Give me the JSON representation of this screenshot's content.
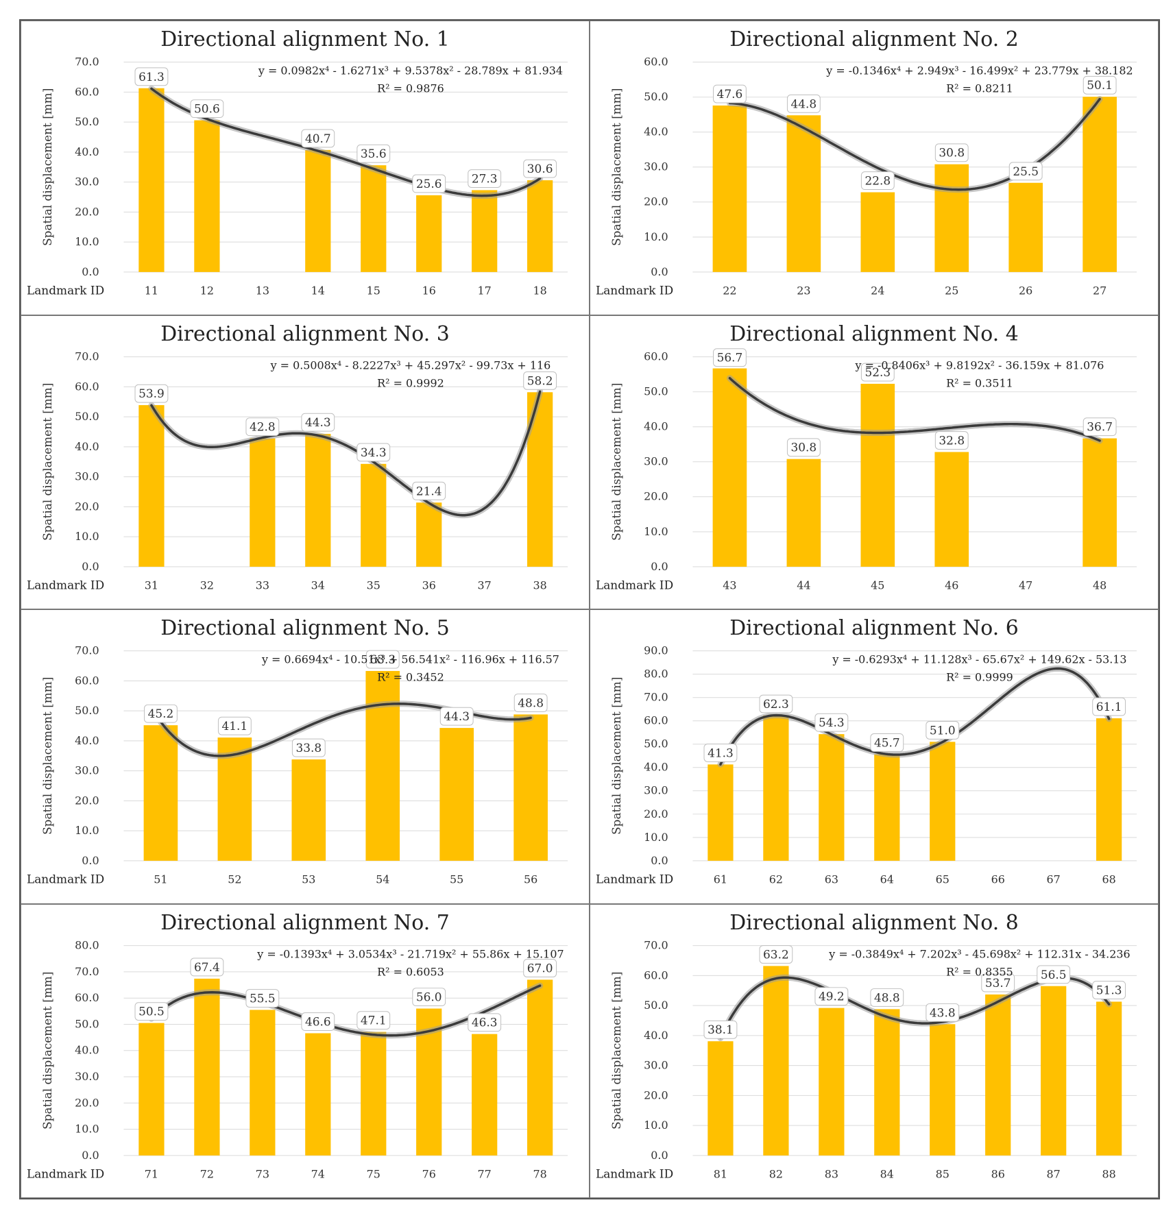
{
  "chart_data": [
    {
      "type": "bar",
      "title": "Directional alignment No. 1",
      "ylabel": "Spatial displacement [mm]",
      "xlabel": "Landmark ID",
      "ylim": [
        0,
        70
      ],
      "yticks": [
        "0.0",
        "10.0",
        "20.0",
        "30.0",
        "40.0",
        "50.0",
        "60.0",
        "70.0"
      ],
      "categories": [
        "11",
        "12",
        "13",
        "14",
        "15",
        "16",
        "17",
        "18"
      ],
      "values": [
        61.3,
        50.6,
        null,
        40.7,
        35.6,
        25.6,
        27.3,
        30.6
      ],
      "labels": [
        "61.3",
        "50.6",
        "",
        "40.7",
        "35.6",
        "25.6",
        "27.3",
        "30.6"
      ],
      "trendline": {
        "type": "polynomial",
        "coefficients": [
          0.0982,
          -1.6271,
          9.5378,
          -28.789,
          81.934
        ]
      },
      "equation": "y = 0.0982x⁴ - 1.6271x³ + 9.5378x² - 28.789x + 81.934",
      "r2": "R² = 0.9876"
    },
    {
      "type": "bar",
      "title": "Directional alignment No. 2",
      "ylabel": "Spatial displacement [mm]",
      "xlabel": "Landmark ID",
      "ylim": [
        0,
        60
      ],
      "yticks": [
        "0.0",
        "10.0",
        "20.0",
        "30.0",
        "40.0",
        "50.0",
        "60.0"
      ],
      "categories": [
        "22",
        "23",
        "24",
        "25",
        "26",
        "27"
      ],
      "values": [
        47.6,
        44.8,
        22.8,
        30.8,
        25.5,
        50.1
      ],
      "labels": [
        "47.6",
        "44.8",
        "22.8",
        "30.8",
        "25.5",
        "50.1"
      ],
      "trendline": {
        "type": "polynomial",
        "coefficients": [
          -0.1346,
          2.949,
          -16.499,
          23.779,
          38.182
        ]
      },
      "equation": "y = -0.1346x⁴ + 2.949x³ - 16.499x² + 23.779x + 38.182",
      "r2": "R² = 0.8211"
    },
    {
      "type": "bar",
      "title": "Directional alignment No. 3",
      "ylabel": "Spatial displacement [mm]",
      "xlabel": "Landmark ID",
      "ylim": [
        0,
        70
      ],
      "yticks": [
        "0.0",
        "10.0",
        "20.0",
        "30.0",
        "40.0",
        "50.0",
        "60.0",
        "70.0"
      ],
      "categories": [
        "31",
        "32",
        "33",
        "34",
        "35",
        "36",
        "37",
        "38"
      ],
      "values": [
        53.9,
        null,
        42.8,
        44.3,
        34.3,
        21.4,
        null,
        58.2
      ],
      "labels": [
        "53.9",
        "",
        "42.8",
        "44.3",
        "34.3",
        "21.4",
        "",
        "58.2"
      ],
      "trendline": {
        "type": "polynomial",
        "coefficients": [
          0.5008,
          -8.2227,
          45.297,
          -99.73,
          116
        ]
      },
      "equation": "y = 0.5008x⁴ - 8.2227x³ + 45.297x² - 99.73x + 116",
      "r2": "R² = 0.9992"
    },
    {
      "type": "bar",
      "title": "Directional alignment No. 4",
      "ylabel": "Spatial displacement [mm]",
      "xlabel": "Landmark ID",
      "ylim": [
        0,
        60
      ],
      "yticks": [
        "0.0",
        "10.0",
        "20.0",
        "30.0",
        "40.0",
        "50.0",
        "60.0"
      ],
      "categories": [
        "43",
        "44",
        "45",
        "46",
        "47",
        "48"
      ],
      "values": [
        56.7,
        30.8,
        52.3,
        32.8,
        null,
        36.7
      ],
      "labels": [
        "56.7",
        "30.8",
        "52.3",
        "32.8",
        "",
        "36.7"
      ],
      "trendline": {
        "type": "polynomial",
        "coefficients": [
          -0.8406,
          9.8192,
          -36.159,
          81.076
        ]
      },
      "equation": "y = -0.8406x³ + 9.8192x² - 36.159x + 81.076",
      "r2": "R² = 0.3511"
    },
    {
      "type": "bar",
      "title": "Directional alignment No. 5",
      "ylabel": "Spatial displacement [mm]",
      "xlabel": "Landmark ID",
      "ylim": [
        0,
        70
      ],
      "yticks": [
        "0.0",
        "10.0",
        "20.0",
        "30.0",
        "40.0",
        "50.0",
        "60.0",
        "70.0"
      ],
      "categories": [
        "51",
        "52",
        "53",
        "54",
        "55",
        "56"
      ],
      "values": [
        45.2,
        41.1,
        33.8,
        63.3,
        44.3,
        48.8
      ],
      "labels": [
        "45.2",
        "41.1",
        "33.8",
        "63.3",
        "44.3",
        "48.8"
      ],
      "trendline": {
        "type": "polynomial",
        "coefficients": [
          0.6694,
          -10.51,
          56.541,
          -116.96,
          116.57
        ]
      },
      "equation": "y = 0.6694x⁴ - 10.51x³ + 56.541x² - 116.96x + 116.57",
      "r2": "R² = 0.3452"
    },
    {
      "type": "bar",
      "title": "Directional alignment No. 6",
      "ylabel": "Spatial displacement [mm]",
      "xlabel": "Landmark ID",
      "ylim": [
        0,
        90
      ],
      "yticks": [
        "0.0",
        "10.0",
        "20.0",
        "30.0",
        "40.0",
        "50.0",
        "60.0",
        "70.0",
        "80.0",
        "90.0"
      ],
      "categories": [
        "61",
        "62",
        "63",
        "64",
        "65",
        "66",
        "67",
        "68"
      ],
      "values": [
        41.3,
        62.3,
        54.3,
        45.7,
        51.0,
        null,
        null,
        61.1
      ],
      "labels": [
        "41.3",
        "62.3",
        "54.3",
        "45.7",
        "51.0",
        "",
        "",
        "61.1"
      ],
      "trendline": {
        "type": "polynomial",
        "coefficients": [
          -0.6293,
          11.128,
          -65.67,
          149.62,
          -53.13
        ]
      },
      "equation": "y = -0.6293x⁴ + 11.128x³ - 65.67x² + 149.62x - 53.13",
      "r2": "R² = 0.9999"
    },
    {
      "type": "bar",
      "title": "Directional alignment No. 7",
      "ylabel": "Spatial displacement [mm]",
      "xlabel": "Landmark ID",
      "ylim": [
        0,
        80
      ],
      "yticks": [
        "0.0",
        "10.0",
        "20.0",
        "30.0",
        "40.0",
        "50.0",
        "60.0",
        "70.0",
        "80.0"
      ],
      "categories": [
        "71",
        "72",
        "73",
        "74",
        "75",
        "76",
        "77",
        "78"
      ],
      "values": [
        50.5,
        67.4,
        55.5,
        46.6,
        47.1,
        56.0,
        46.3,
        67.0
      ],
      "labels": [
        "50.5",
        "67.4",
        "55.5",
        "46.6",
        "47.1",
        "56.0",
        "46.3",
        "67.0"
      ],
      "trendline": {
        "type": "polynomial",
        "coefficients": [
          -0.1393,
          3.0534,
          -21.719,
          55.86,
          15.107
        ]
      },
      "equation": "y = -0.1393x⁴ + 3.0534x³ - 21.719x² + 55.86x + 15.107",
      "r2": "R² = 0.6053"
    },
    {
      "type": "bar",
      "title": "Directional alignment No. 8",
      "ylabel": "Spatial displacement [mm]",
      "xlabel": "Landmark ID",
      "ylim": [
        0,
        70
      ],
      "yticks": [
        "0.0",
        "10.0",
        "20.0",
        "30.0",
        "40.0",
        "50.0",
        "60.0",
        "70.0"
      ],
      "categories": [
        "81",
        "82",
        "83",
        "84",
        "85",
        "86",
        "87",
        "88"
      ],
      "values": [
        38.1,
        63.2,
        49.2,
        48.8,
        43.8,
        53.7,
        56.5,
        51.3
      ],
      "labels": [
        "38.1",
        "63.2",
        "49.2",
        "48.8",
        "43.8",
        "53.7",
        "56.5",
        "51.3"
      ],
      "trendline": {
        "type": "polynomial",
        "coefficients": [
          -0.3849,
          7.202,
          -45.698,
          112.31,
          -34.236
        ]
      },
      "equation": "y = -0.3849x⁴ + 7.202x³ - 45.698x² + 112.31x - 34.236",
      "r2": "R² = 0.8355"
    }
  ],
  "colors": {
    "bar": "#FFC000",
    "grid": "#D9D9D9",
    "trend": "#3a3a3a",
    "label_border": "#BFBFBF"
  }
}
